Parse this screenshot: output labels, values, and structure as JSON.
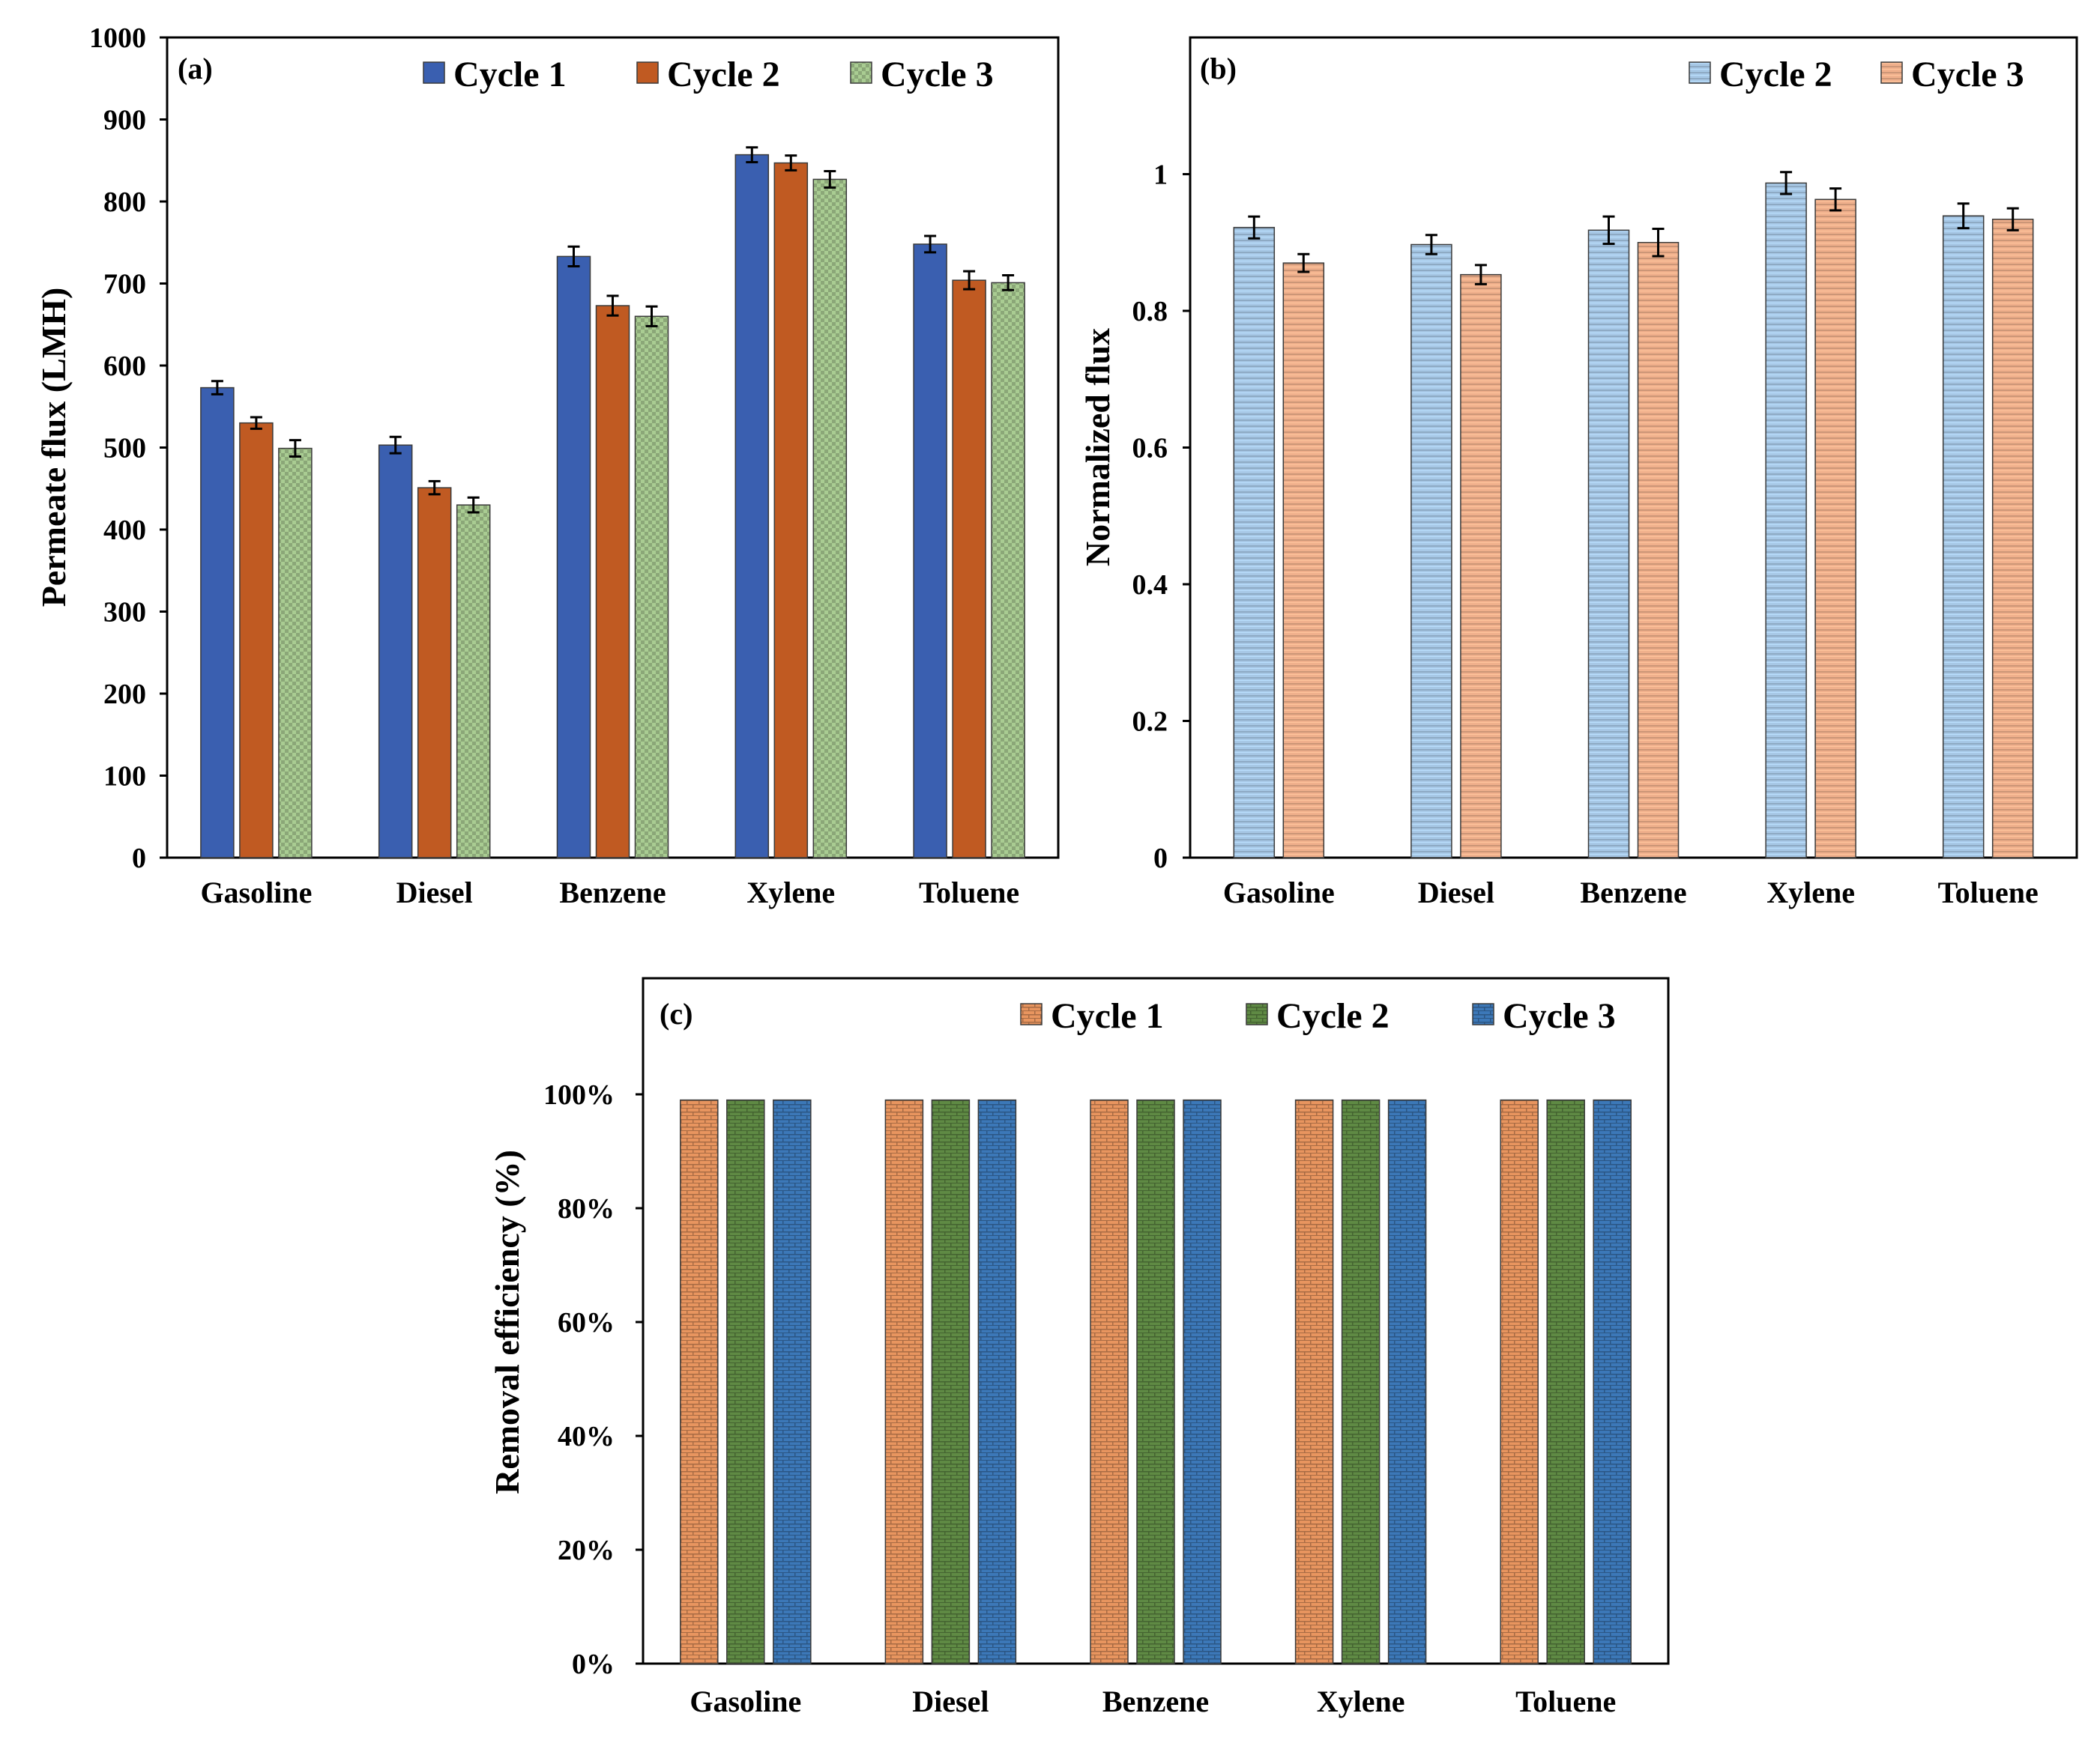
{
  "colors": {
    "a_cycle1": "#3a5fb0",
    "a_cycle2": "#c05a22",
    "a_cycle3": "#a9cc92",
    "b_cycle2": "#a7c8e6",
    "b_cycle3": "#f0b08c",
    "c_cycle1": "#e8955f",
    "c_cycle2": "#5f8a44",
    "c_cycle3": "#3c78b8",
    "frame": "#000000"
  },
  "chart_data": [
    {
      "id": "a",
      "type": "bar",
      "panel_label": "(a)",
      "categories": [
        "Gasoline",
        "Diesel",
        "Benzene",
        "Xylene",
        "Toluene"
      ],
      "ylabel": "Permeate flux (LMH)",
      "xlabel": "",
      "ylim": [
        0,
        1000
      ],
      "yticks": [
        0,
        100,
        200,
        300,
        400,
        500,
        600,
        700,
        800,
        900,
        1000
      ],
      "ytick_labels": [
        "0",
        "100",
        "200",
        "300",
        "400",
        "500",
        "600",
        "700",
        "800",
        "900",
        "1000"
      ],
      "grid": false,
      "legend_position": "top-right",
      "error_bars": true,
      "series": [
        {
          "name": "Cycle 1",
          "color_key": "a_cycle1",
          "pattern": "solid",
          "values": [
            573,
            503,
            733,
            857,
            748
          ],
          "errors": [
            8,
            10,
            12,
            9,
            10
          ]
        },
        {
          "name": "Cycle 2",
          "color_key": "a_cycle2",
          "pattern": "solid",
          "values": [
            530,
            451,
            673,
            847,
            704
          ],
          "errors": [
            7,
            8,
            12,
            9,
            11
          ]
        },
        {
          "name": "Cycle 3",
          "color_key": "a_cycle3",
          "pattern": "checker",
          "values": [
            499,
            430,
            660,
            827,
            701
          ],
          "errors": [
            10,
            9,
            12,
            10,
            9
          ]
        }
      ]
    },
    {
      "id": "b",
      "type": "bar",
      "panel_label": "(b)",
      "categories": [
        "Gasoline",
        "Diesel",
        "Benzene",
        "Xylene",
        "Toluene"
      ],
      "ylabel": "Normalized flux",
      "xlabel": "",
      "ylim": [
        0,
        1.2
      ],
      "yticks": [
        0,
        0.2,
        0.4,
        0.6,
        0.8,
        1.0
      ],
      "ytick_labels": [
        "0",
        "0.2",
        "0.4",
        "0.6",
        "0.8",
        "1"
      ],
      "grid": false,
      "legend_position": "top-right",
      "error_bars": true,
      "series": [
        {
          "name": "Cycle 2",
          "color_key": "b_cycle2",
          "pattern": "horizontal-lines",
          "values": [
            0.922,
            0.897,
            0.918,
            0.987,
            0.939
          ],
          "errors": [
            0.016,
            0.014,
            0.02,
            0.016,
            0.018
          ]
        },
        {
          "name": "Cycle 3",
          "color_key": "b_cycle3",
          "pattern": "horizontal-lines",
          "values": [
            0.87,
            0.853,
            0.9,
            0.963,
            0.934
          ],
          "errors": [
            0.013,
            0.014,
            0.02,
            0.016,
            0.016
          ]
        }
      ]
    },
    {
      "id": "c",
      "type": "bar",
      "panel_label": "(c)",
      "categories": [
        "Gasoline",
        "Diesel",
        "Benzene",
        "Xylene",
        "Toluene"
      ],
      "ylabel": "Removal efficiency (%)",
      "xlabel": "",
      "ylim": [
        0,
        100
      ],
      "yticks": [
        0,
        20,
        40,
        60,
        80,
        100
      ],
      "ytick_labels": [
        "0%",
        "20%",
        "40%",
        "60%",
        "80%",
        "100%"
      ],
      "grid": false,
      "legend_position": "top-right",
      "error_bars": false,
      "series": [
        {
          "name": "Cycle 1",
          "color_key": "c_cycle1",
          "pattern": "brick",
          "values": [
            99,
            99,
            99,
            99,
            99
          ]
        },
        {
          "name": "Cycle 2",
          "color_key": "c_cycle2",
          "pattern": "brick",
          "values": [
            99,
            99,
            99,
            99,
            99
          ]
        },
        {
          "name": "Cycle 3",
          "color_key": "c_cycle3",
          "pattern": "brick",
          "values": [
            99,
            99,
            99,
            99,
            99
          ]
        }
      ]
    }
  ]
}
